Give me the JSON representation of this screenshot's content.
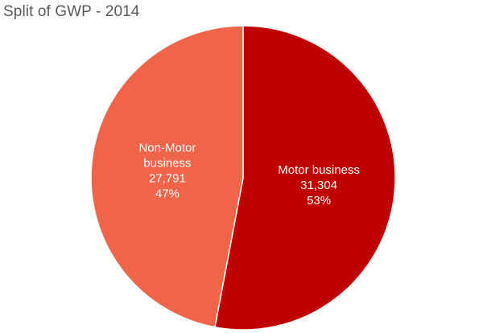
{
  "chart_data": {
    "type": "pie",
    "title": "Split of GWP - 2014",
    "start_angle_deg": 0,
    "direction": "clockwise",
    "slices": [
      {
        "name": "Motor business",
        "label_lines": [
          "Motor business",
          "31,304",
          "53%"
        ],
        "value": 31304,
        "percent": 53,
        "color": "#c00000"
      },
      {
        "name": "Non-Motor business",
        "label_lines": [
          "Non-Motor",
          "business",
          "27,791",
          "47%"
        ],
        "value": 27791,
        "percent": 47,
        "color": "#f0644a"
      }
    ],
    "legend": "none",
    "grid": false
  }
}
